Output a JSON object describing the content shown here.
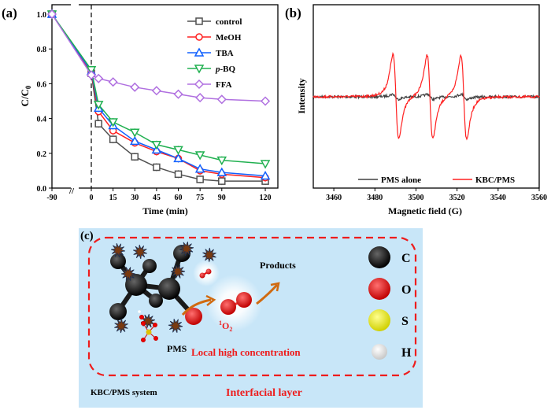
{
  "chart_data": [
    {
      "panel_label": "(a)",
      "type": "line",
      "xlabel": "Time (min)",
      "ylabel": "C/C0",
      "x": [
        -90,
        0,
        5,
        15,
        30,
        45,
        60,
        75,
        90,
        120
      ],
      "xticks": [
        "-90",
        "0",
        "15",
        "30",
        "45",
        "60",
        "75",
        "90",
        "120"
      ],
      "xtick_values": [
        -90,
        0,
        15,
        30,
        45,
        60,
        75,
        90,
        120
      ],
      "yticks": [
        "0.0",
        "0.2",
        "0.4",
        "0.6",
        "0.8",
        "1.0"
      ],
      "ylim": [
        0,
        1.03
      ],
      "axis_break": "between -90 and 0",
      "vertical_dashed_line_at": 0,
      "legend_position": "top-right",
      "series": [
        {
          "name": "control",
          "marker": "square",
          "color": "#505050",
          "values": [
            1.0,
            0.66,
            0.37,
            0.28,
            0.18,
            0.12,
            0.08,
            0.05,
            0.04,
            0.04
          ]
        },
        {
          "name": "MeOH",
          "marker": "circle",
          "color": "#ff2020",
          "values": [
            1.0,
            0.66,
            0.44,
            0.33,
            0.26,
            0.21,
            0.17,
            0.1,
            0.08,
            0.06
          ]
        },
        {
          "name": "TBA",
          "marker": "triangle-up",
          "color": "#1060ff",
          "values": [
            1.0,
            0.67,
            0.46,
            0.36,
            0.27,
            0.22,
            0.17,
            0.11,
            0.09,
            0.07
          ]
        },
        {
          "name": "p-BQ",
          "marker": "triangle-down",
          "color": "#20b050",
          "values": [
            1.0,
            0.68,
            0.48,
            0.38,
            0.32,
            0.25,
            0.22,
            0.19,
            0.16,
            0.14
          ]
        },
        {
          "name": "FFA",
          "marker": "diamond",
          "color": "#b070e0",
          "values": [
            1.0,
            0.65,
            0.63,
            0.61,
            0.58,
            0.56,
            0.54,
            0.52,
            0.51,
            0.5
          ]
        }
      ]
    },
    {
      "panel_label": "(b)",
      "type": "line",
      "xlabel": "Magnetic field (G)",
      "ylabel": "Intensity",
      "xlim": [
        3450,
        3560
      ],
      "xticks": [
        "3460",
        "3480",
        "3500",
        "3520",
        "3540",
        "3560"
      ],
      "xtick_values": [
        3460,
        3480,
        3500,
        3520,
        3540,
        3560
      ],
      "legend_position": "bottom",
      "series": [
        {
          "name": "PMS alone",
          "color": "#404040",
          "peak_centers": [
            3490,
            3507,
            3523.5
          ],
          "relative_amplitude": 0.05
        },
        {
          "name": "KBC/PMS",
          "color": "#ff2020",
          "peak_centers": [
            3490.2,
            3506.8,
            3523.3
          ],
          "relative_amplitude": 1.0
        }
      ]
    }
  ],
  "diagram": {
    "panel_label": "(c)",
    "products": "Products",
    "pms": "PMS",
    "singlet_oxygen_sup": "1",
    "singlet_oxygen": "O",
    "singlet_oxygen_sub": "2",
    "local": "Local high concentration",
    "system": "KBC/PMS system",
    "interfacial": "Interfacial  layer",
    "legend": [
      {
        "label": "C",
        "color": "#000000"
      },
      {
        "label": "O",
        "color": "#e00000"
      },
      {
        "label": "S",
        "color": "#f0f000"
      },
      {
        "label": "H",
        "color": "#ffffff"
      }
    ]
  }
}
